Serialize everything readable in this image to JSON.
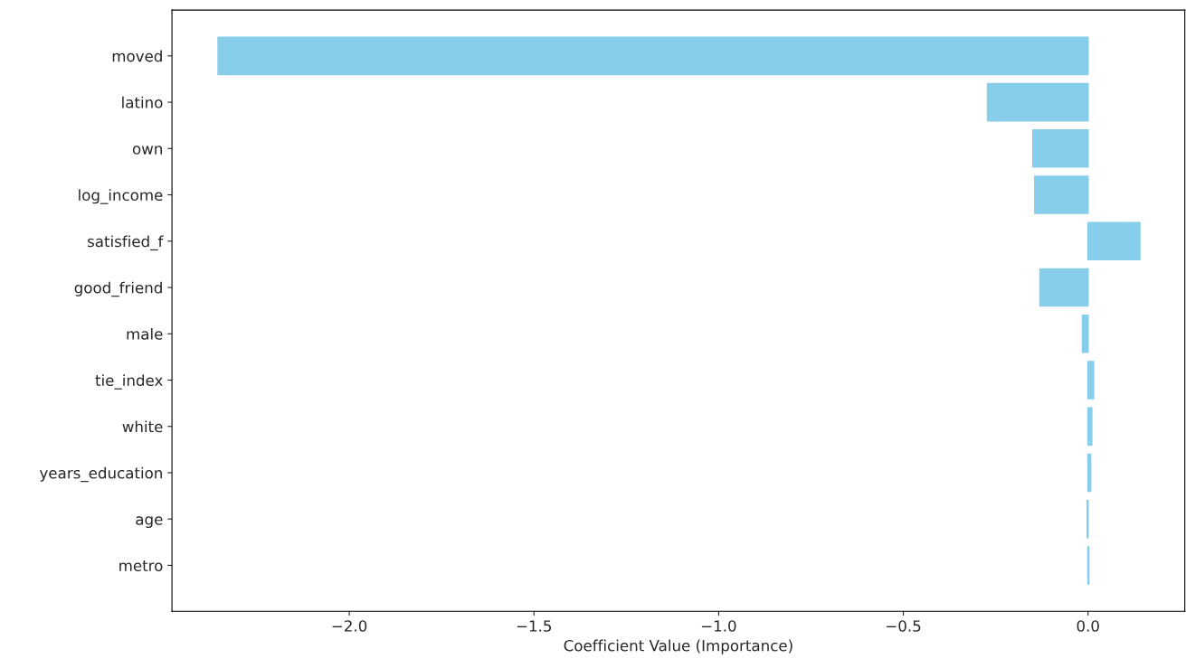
{
  "chart_data": {
    "type": "bar",
    "orientation": "horizontal",
    "xlabel": "Coefficient Value (Importance)",
    "categories": [
      "moved",
      "latino",
      "own",
      "log_income",
      "satisfied_f",
      "good_friend",
      "male",
      "tie_index",
      "white",
      "years_education",
      "age",
      "metro"
    ],
    "values": [
      -2.355,
      -0.272,
      -0.149,
      -0.144,
      0.14,
      -0.13,
      -0.015,
      0.015,
      0.01,
      0.007,
      -0.002,
      0.002
    ],
    "color": "#87ceeb",
    "xlim": [
      -2.48,
      0.262
    ],
    "xticks": [
      {
        "value": -2.0,
        "label": "−2.0"
      },
      {
        "value": -1.5,
        "label": "−1.5"
      },
      {
        "value": -1.0,
        "label": "−1.0"
      },
      {
        "value": -0.5,
        "label": "−0.5"
      },
      {
        "value": 0.0,
        "label": "0.0"
      }
    ],
    "grid": false
  }
}
